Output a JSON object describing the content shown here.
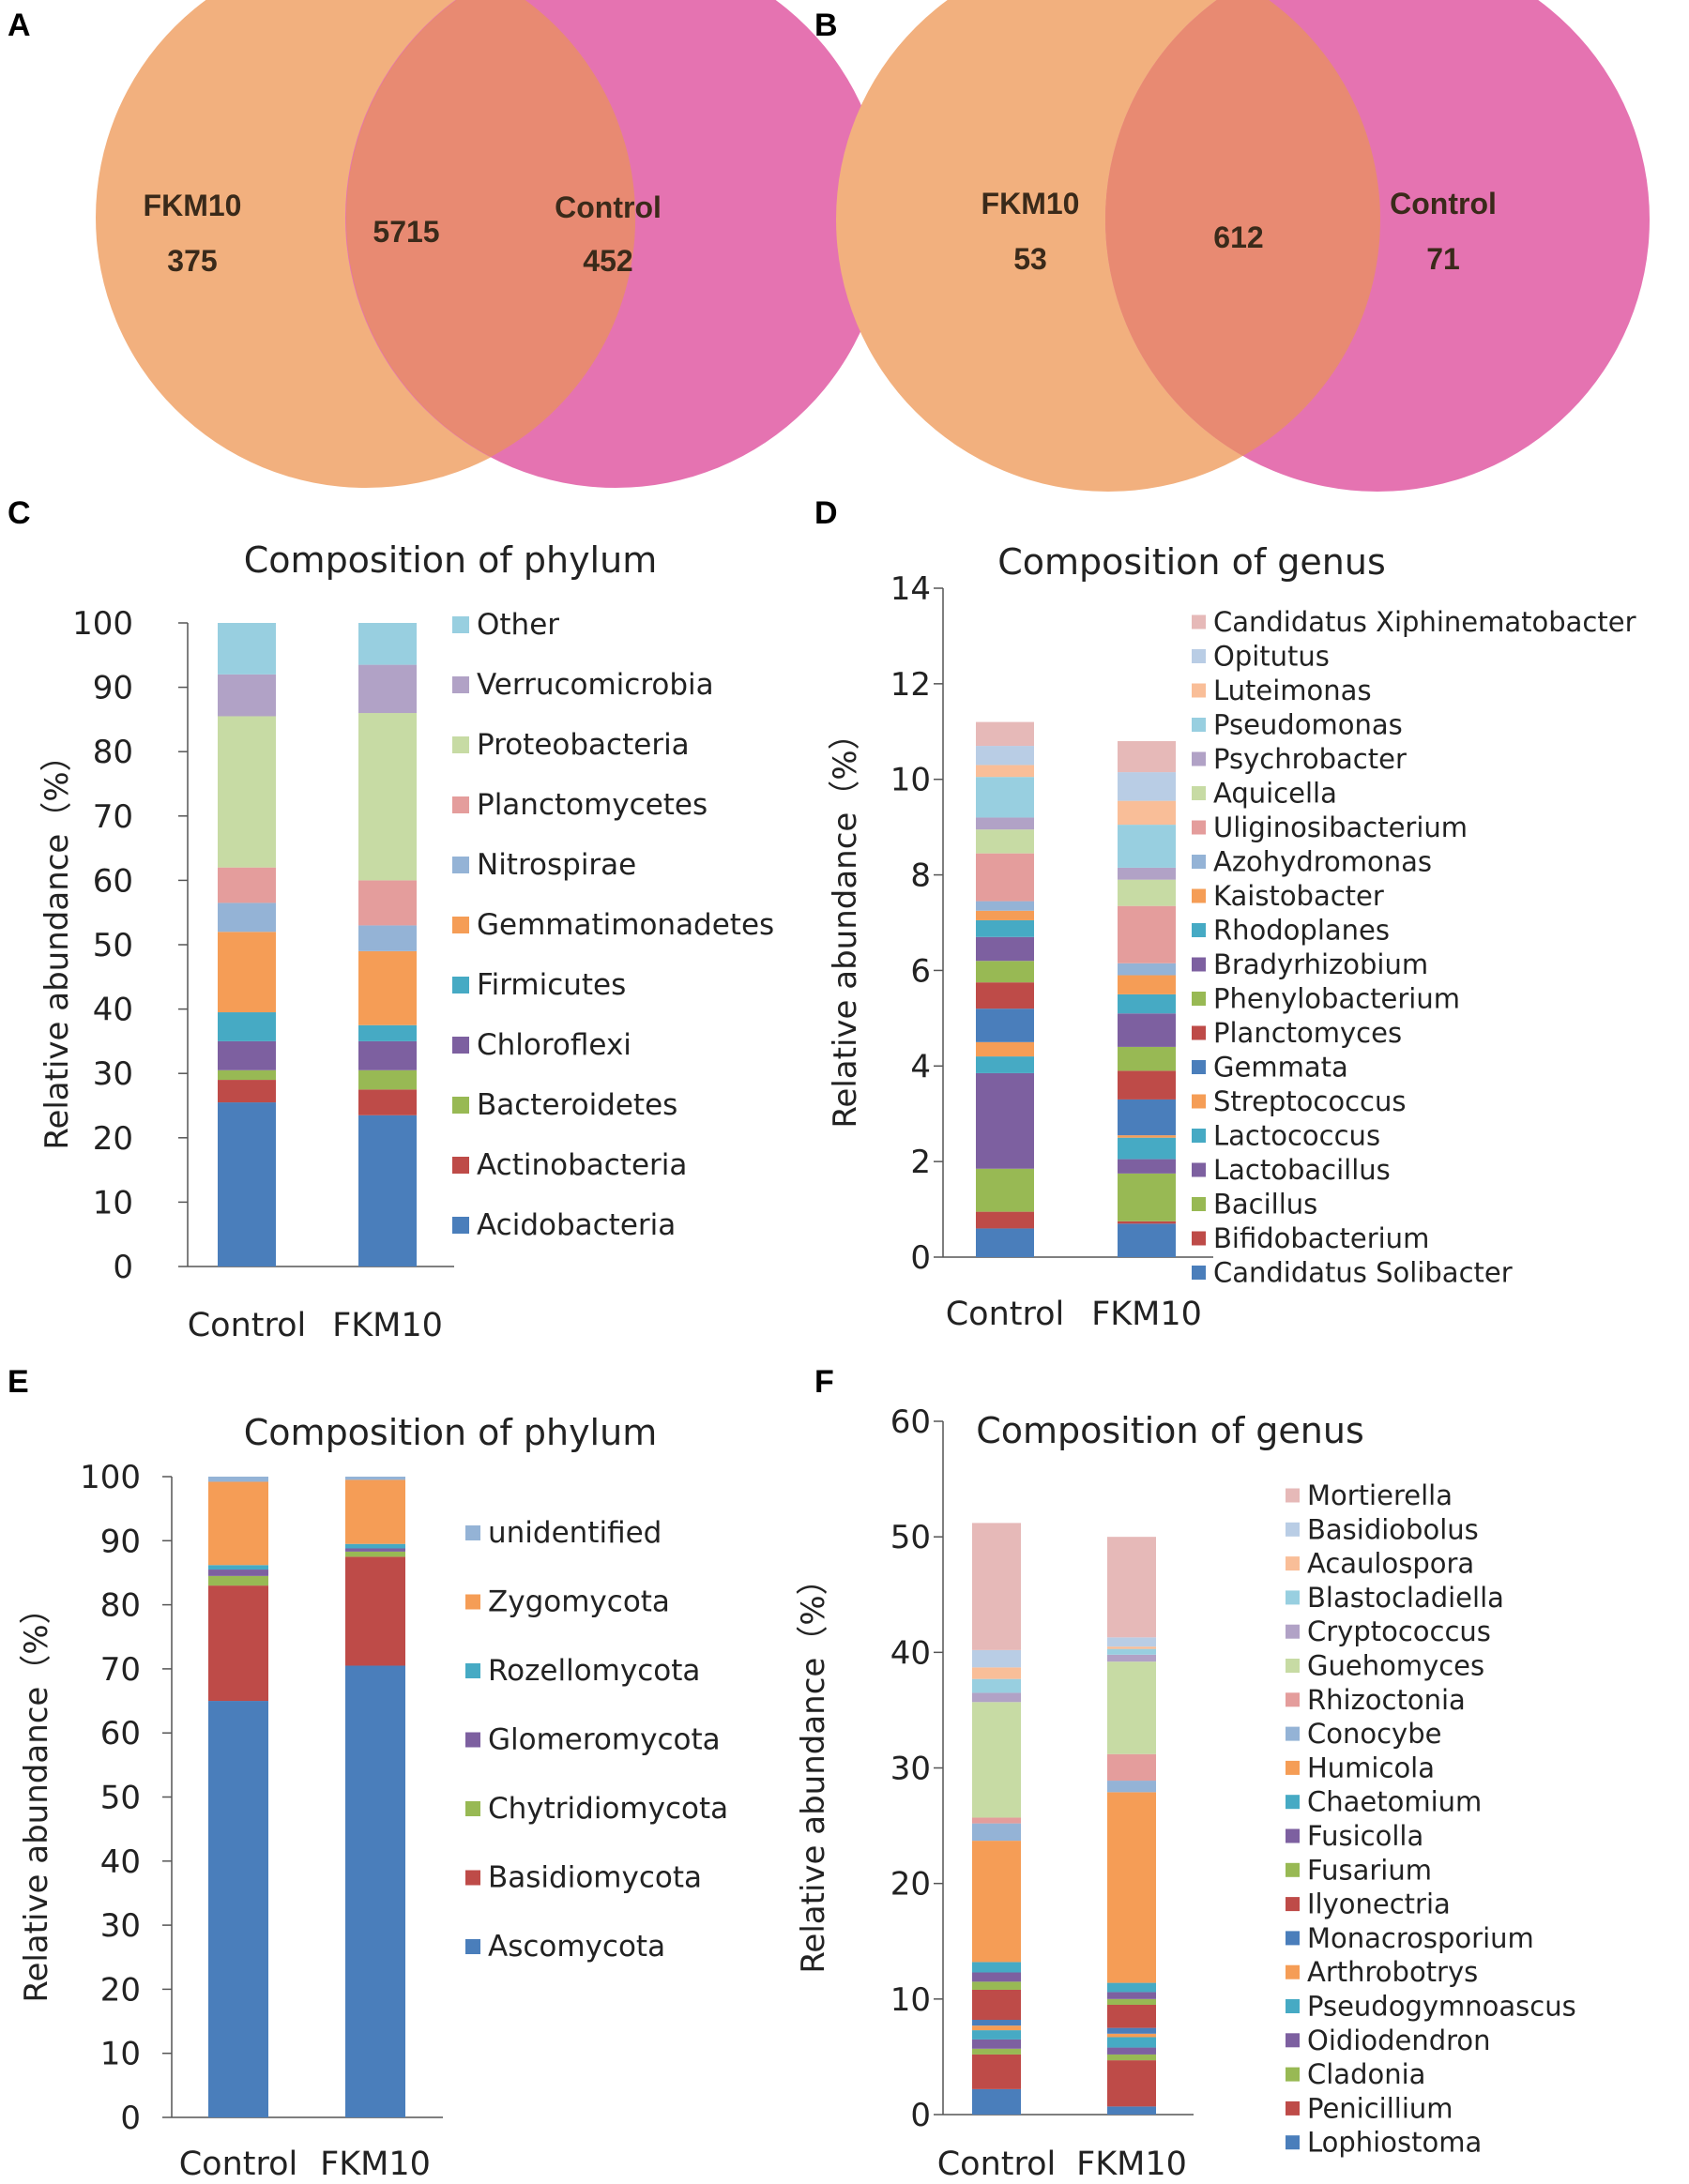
{
  "panels": {
    "A": {
      "label": "A",
      "venn": {
        "left_name": "FKM10",
        "left_only": "375",
        "overlap": "5715",
        "right_name": "Control",
        "right_only": "452",
        "left_color": "#f2b07e",
        "right_color": "#e573b1",
        "overlap_color": "#e88a72"
      }
    },
    "B": {
      "label": "B",
      "venn": {
        "left_name": "FKM10",
        "left_only": "53",
        "overlap": "612",
        "right_name": "Control",
        "right_only": "71",
        "left_color": "#f2b07e",
        "right_color": "#e573b1",
        "overlap_color": "#e88a72"
      }
    },
    "C": {
      "label": "C"
    },
    "D": {
      "label": "D"
    },
    "E": {
      "label": "E"
    },
    "F": {
      "label": "F"
    }
  },
  "chart_data": [
    {
      "panel": "C",
      "type": "bar",
      "stacked": true,
      "title": "Composition of phylum",
      "ylabel": "Relative abundance（%）",
      "ylim": [
        0,
        100
      ],
      "yticks": [
        0,
        10,
        20,
        30,
        40,
        50,
        60,
        70,
        80,
        90,
        100
      ],
      "categories": [
        "Control",
        "FKM10"
      ],
      "legend_position": "right",
      "series": [
        {
          "name": "Acidobacteria",
          "color": "#4a7ebb",
          "values": [
            25.5,
            23.5
          ]
        },
        {
          "name": "Actinobacteria",
          "color": "#be4b48",
          "values": [
            3.5,
            4.0
          ]
        },
        {
          "name": "Bacteroidetes",
          "color": "#98b954",
          "values": [
            1.5,
            3.0
          ]
        },
        {
          "name": "Chloroflexi",
          "color": "#7d60a0",
          "values": [
            4.5,
            4.5
          ]
        },
        {
          "name": "Firmicutes",
          "color": "#46aac4",
          "values": [
            4.5,
            2.5
          ]
        },
        {
          "name": "Gemmatimonadetes",
          "color": "#f59d56",
          "values": [
            12.5,
            11.5
          ]
        },
        {
          "name": "Nitrospirae",
          "color": "#94b3d6",
          "values": [
            4.5,
            4.0
          ]
        },
        {
          "name": "Planctomycetes",
          "color": "#e49d9c",
          "values": [
            5.5,
            7.0
          ]
        },
        {
          "name": "Proteobacteria",
          "color": "#c7dba4",
          "values": [
            23.5,
            26.0
          ]
        },
        {
          "name": "Verrucomicrobia",
          "color": "#b1a2c6",
          "values": [
            6.5,
            7.5
          ]
        },
        {
          "name": "Other",
          "color": "#98cfe0",
          "values": [
            8.0,
            6.5
          ]
        }
      ]
    },
    {
      "panel": "D",
      "type": "bar",
      "stacked": true,
      "title": "Composition of genus",
      "ylabel": "Relative abundance（%）",
      "ylim": [
        0,
        14
      ],
      "yticks": [
        0,
        2,
        4,
        6,
        8,
        10,
        12,
        14
      ],
      "categories": [
        "Control",
        "FKM10"
      ],
      "legend_position": "right",
      "series": [
        {
          "name": "Candidatus Solibacter",
          "color": "#4a7ebb",
          "values": [
            0.6,
            0.7
          ]
        },
        {
          "name": "Bifidobacterium",
          "color": "#be4b48",
          "values": [
            0.35,
            0.05
          ]
        },
        {
          "name": "Bacillus",
          "color": "#98b954",
          "values": [
            0.9,
            1.0
          ]
        },
        {
          "name": "Lactobacillus",
          "color": "#7d60a0",
          "values": [
            2.0,
            0.3
          ]
        },
        {
          "name": "Lactococcus",
          "color": "#46aac4",
          "values": [
            0.35,
            0.45
          ]
        },
        {
          "name": "Streptococcus",
          "color": "#f59d56",
          "values": [
            0.3,
            0.05
          ]
        },
        {
          "name": "Gemmata",
          "color": "#4a7ebb",
          "values": [
            0.7,
            0.75
          ]
        },
        {
          "name": "Planctomyces",
          "color": "#be4b48",
          "values": [
            0.55,
            0.6
          ]
        },
        {
          "name": "Phenylobacterium",
          "color": "#98b954",
          "values": [
            0.45,
            0.5
          ]
        },
        {
          "name": "Bradyrhizobium",
          "color": "#7d60a0",
          "values": [
            0.5,
            0.7
          ]
        },
        {
          "name": "Rhodoplanes",
          "color": "#46aac4",
          "values": [
            0.35,
            0.4
          ]
        },
        {
          "name": "Kaistobacter",
          "color": "#f59d56",
          "values": [
            0.2,
            0.4
          ]
        },
        {
          "name": "Azohydromonas",
          "color": "#94b3d6",
          "values": [
            0.2,
            0.25
          ]
        },
        {
          "name": "Uliginosibacterium",
          "color": "#e49d9c",
          "values": [
            1.0,
            1.2
          ]
        },
        {
          "name": "Aquicella",
          "color": "#c7dba4",
          "values": [
            0.5,
            0.55
          ]
        },
        {
          "name": "Psychrobacter",
          "color": "#b1a2c6",
          "values": [
            0.25,
            0.25
          ]
        },
        {
          "name": "Pseudomonas",
          "color": "#98cfe0",
          "values": [
            0.85,
            0.9
          ]
        },
        {
          "name": "Luteimonas",
          "color": "#f9be98",
          "values": [
            0.25,
            0.5
          ]
        },
        {
          "name": "Opitutus",
          "color": "#b9cde5",
          "values": [
            0.4,
            0.6
          ]
        },
        {
          "name": "Candidatus Xiphinematobacter",
          "color": "#e6b9b8",
          "values": [
            0.5,
            0.65
          ]
        }
      ]
    },
    {
      "panel": "E",
      "type": "bar",
      "stacked": true,
      "title": "Composition of phylum",
      "ylabel": "Relative abundance（%）",
      "ylim": [
        0,
        100
      ],
      "yticks": [
        0,
        10,
        20,
        30,
        40,
        50,
        60,
        70,
        80,
        90,
        100
      ],
      "categories": [
        "Control",
        "FKM10"
      ],
      "legend_position": "right",
      "series": [
        {
          "name": "Ascomycota",
          "color": "#4a7ebb",
          "values": [
            65.0,
            70.5
          ]
        },
        {
          "name": "Basidiomycota",
          "color": "#be4b48",
          "values": [
            18.0,
            17.0
          ]
        },
        {
          "name": "Chytridiomycota",
          "color": "#98b954",
          "values": [
            1.5,
            0.8
          ]
        },
        {
          "name": "Glomeromycota",
          "color": "#7d60a0",
          "values": [
            1.0,
            0.5
          ]
        },
        {
          "name": "Rozellomycota",
          "color": "#46aac4",
          "values": [
            0.7,
            0.7
          ]
        },
        {
          "name": "Zygomycota",
          "color": "#f59d56",
          "values": [
            13.0,
            10.0
          ]
        },
        {
          "name": "unidentified",
          "color": "#94b3d6",
          "values": [
            0.8,
            0.5
          ]
        }
      ]
    },
    {
      "panel": "F",
      "type": "bar",
      "stacked": true,
      "title": "Composition of genus",
      "ylabel": "Relative abundance（%）",
      "ylim": [
        0,
        60
      ],
      "yticks": [
        0,
        10,
        20,
        30,
        40,
        50,
        60
      ],
      "categories": [
        "Control",
        "FKM10"
      ],
      "legend_position": "right",
      "series": [
        {
          "name": "Lophiostoma",
          "color": "#4a7ebb",
          "values": [
            2.2,
            0.7
          ]
        },
        {
          "name": "Penicillium",
          "color": "#be4b48",
          "values": [
            3.0,
            4.0
          ]
        },
        {
          "name": "Cladonia",
          "color": "#98b954",
          "values": [
            0.5,
            0.5
          ]
        },
        {
          "name": "Oidiodendron",
          "color": "#7d60a0",
          "values": [
            0.8,
            0.6
          ]
        },
        {
          "name": "Pseudogymnoascus",
          "color": "#46aac4",
          "values": [
            0.8,
            0.9
          ]
        },
        {
          "name": "Arthrobotrys",
          "color": "#f59d56",
          "values": [
            0.4,
            0.3
          ]
        },
        {
          "name": "Monacrosporium",
          "color": "#4a7ebb",
          "values": [
            0.5,
            0.5
          ]
        },
        {
          "name": "Ilyonectria",
          "color": "#be4b48",
          "values": [
            2.6,
            2.0
          ]
        },
        {
          "name": "Fusarium",
          "color": "#98b954",
          "values": [
            0.7,
            0.5
          ]
        },
        {
          "name": "Fusicolla",
          "color": "#7d60a0",
          "values": [
            0.8,
            0.6
          ]
        },
        {
          "name": "Chaetomium",
          "color": "#46aac4",
          "values": [
            0.9,
            0.8
          ]
        },
        {
          "name": "Humicola",
          "color": "#f59d56",
          "values": [
            10.5,
            16.5
          ]
        },
        {
          "name": "Conocybe",
          "color": "#94b3d6",
          "values": [
            1.5,
            1.0
          ]
        },
        {
          "name": "Rhizoctonia",
          "color": "#e49d9c",
          "values": [
            0.5,
            2.3
          ]
        },
        {
          "name": "Guehomyces",
          "color": "#c7dba4",
          "values": [
            10.0,
            8.0
          ]
        },
        {
          "name": "Cryptococcus",
          "color": "#b1a2c6",
          "values": [
            0.8,
            0.6
          ]
        },
        {
          "name": "Blastocladiella",
          "color": "#98cfe0",
          "values": [
            1.2,
            0.5
          ]
        },
        {
          "name": "Acaulospora",
          "color": "#f9be98",
          "values": [
            1.0,
            0.2
          ]
        },
        {
          "name": "Basidiobolus",
          "color": "#b9cde5",
          "values": [
            1.5,
            0.8
          ]
        },
        {
          "name": "Mortierella",
          "color": "#e6b9b8",
          "values": [
            11.0,
            8.7
          ]
        }
      ]
    }
  ]
}
